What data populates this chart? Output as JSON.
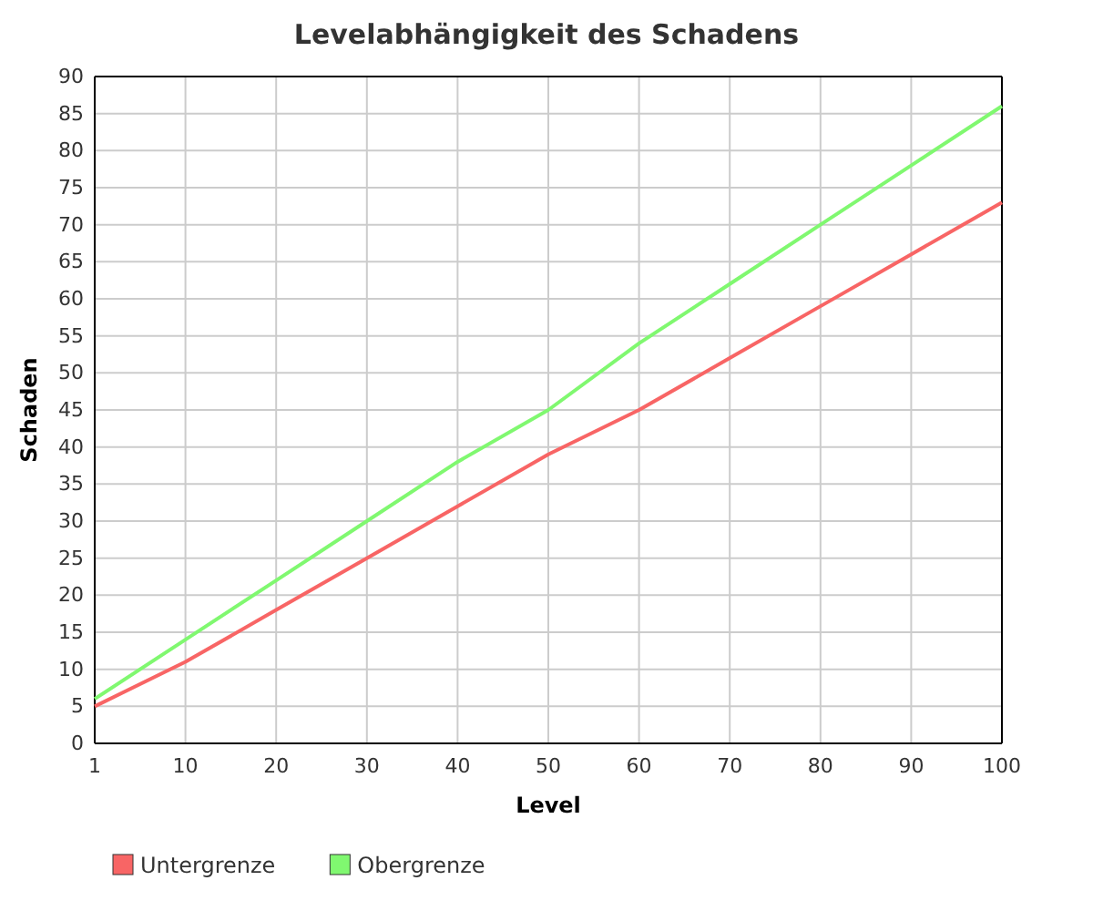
{
  "chart_data": {
    "type": "line",
    "title": "Levelabhängigkeit des Schadens",
    "xlabel": "Level",
    "ylabel": "Schaden",
    "categories": [
      "1",
      "10",
      "20",
      "30",
      "40",
      "50",
      "60",
      "70",
      "80",
      "90",
      "100"
    ],
    "series": [
      {
        "name": "Untergrenze",
        "color": "#f86565",
        "values": [
          5,
          11,
          18,
          25,
          32,
          39,
          45,
          52,
          59,
          66,
          73
        ]
      },
      {
        "name": "Obergrenze",
        "color": "#80f870",
        "values": [
          6,
          14,
          22,
          30,
          38,
          45,
          54,
          62,
          70,
          78,
          86
        ]
      }
    ],
    "ylim": [
      0,
      90
    ],
    "yticks": [
      0,
      5,
      10,
      15,
      20,
      25,
      30,
      35,
      40,
      45,
      50,
      55,
      60,
      65,
      70,
      75,
      80,
      85,
      90
    ],
    "grid": true,
    "legend": "bottom left",
    "marker": "none",
    "line_style": "solid"
  }
}
